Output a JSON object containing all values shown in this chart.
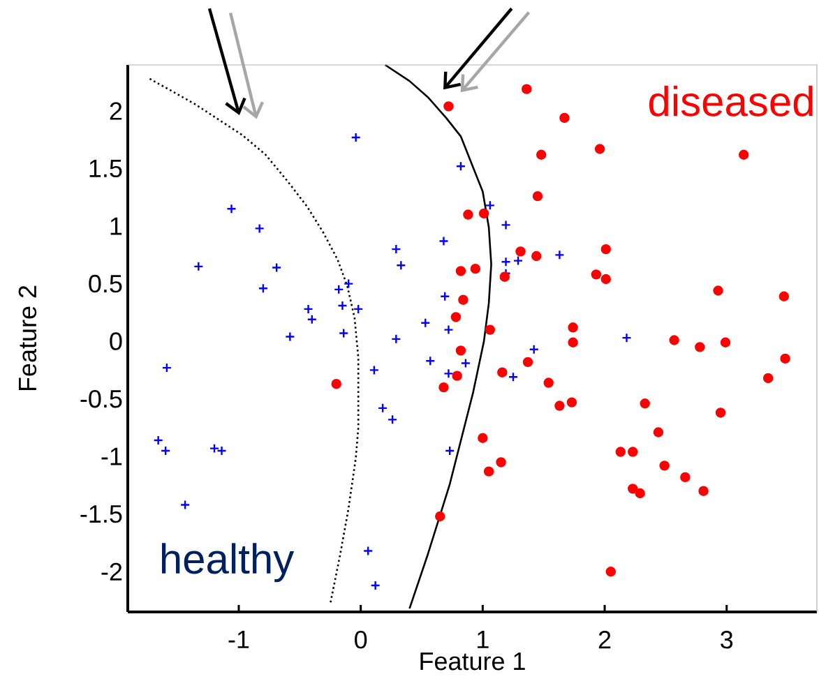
{
  "chart_data": {
    "type": "scatter",
    "xlabel": "Feature 1",
    "ylabel": "Feature 2",
    "annotations": [
      "healthy",
      "diseased"
    ],
    "xlim": [
      -1.91,
      3.74
    ],
    "ylim": [
      -2.35,
      2.4
    ],
    "xticks": [
      -1,
      0,
      1,
      2,
      3
    ],
    "yticks": [
      -2,
      -1.5,
      -1,
      -0.5,
      0,
      0.5,
      1,
      1.5,
      2
    ],
    "series": [
      {
        "color": "#0000ff",
        "marker": "cross",
        "x": [
          -0.04,
          0.82,
          -1.06,
          -0.83,
          -1.33,
          -0.69,
          -0.8,
          0.68,
          0.29,
          0.33,
          -0.1,
          -0.18,
          0.69,
          -0.43,
          -0.15,
          -0.02,
          -0.4,
          0.53,
          0.72,
          -0.58,
          -0.14,
          0.29,
          1.06,
          1.19,
          1.19,
          1.29,
          1.63,
          1.19,
          2.18,
          -1.59,
          0.11,
          0.57,
          0.86,
          0.72,
          0.18,
          0.26,
          -1.66,
          -1.6,
          -1.2,
          -1.14,
          0.73,
          -1.44,
          0.06,
          0.12,
          1.42,
          1.25
        ],
        "values": [
          1.77,
          1.52,
          1.15,
          0.98,
          0.65,
          0.64,
          0.46,
          0.87,
          0.8,
          0.66,
          0.5,
          0.45,
          0.39,
          0.28,
          0.31,
          0.28,
          0.19,
          0.16,
          0.1,
          0.04,
          0.07,
          0.02,
          1.18,
          1.01,
          0.69,
          0.7,
          0.75,
          0.59,
          0.03,
          -0.23,
          -0.25,
          -0.17,
          -0.19,
          -0.28,
          -0.58,
          -0.68,
          -0.86,
          -0.95,
          -0.93,
          -0.95,
          -0.95,
          -1.42,
          -1.82,
          -2.12,
          -0.07,
          -0.31
        ]
      },
      {
        "color": "#ff0000",
        "marker": "circle",
        "x": [
          0.72,
          0.88,
          0.82,
          0.84,
          0.78,
          1.36,
          1.67,
          1.48,
          1.96,
          3.14,
          1.45,
          1.01,
          1.31,
          1.44,
          2.01,
          0.94,
          1.18,
          1.93,
          2.01,
          2.93,
          3.47,
          1.06,
          1.74,
          1.74,
          2.57,
          2.78,
          2.99,
          3.48,
          0.82,
          0.79,
          0.68,
          1.37,
          1.16,
          1.54,
          1.63,
          1.73,
          2.33,
          3.34,
          2.95,
          2.44,
          1.0,
          2.13,
          2.23,
          2.49,
          1.05,
          1.15,
          2.66,
          2.23,
          2.29,
          2.81,
          0.65,
          2.05,
          -0.2
        ],
        "values": [
          2.04,
          1.1,
          0.61,
          0.36,
          0.21,
          2.19,
          1.94,
          1.62,
          1.67,
          1.62,
          1.26,
          1.11,
          0.78,
          0.74,
          0.8,
          0.63,
          0.56,
          0.58,
          0.54,
          0.44,
          0.39,
          0.1,
          0.12,
          -0.01,
          0.01,
          -0.05,
          -0.01,
          -0.15,
          -0.08,
          -0.3,
          -0.4,
          -0.18,
          -0.27,
          -0.36,
          -0.56,
          -0.53,
          -0.54,
          -0.32,
          -0.62,
          -0.79,
          -0.84,
          -0.96,
          -0.96,
          -1.08,
          -1.13,
          -1.05,
          -1.18,
          -1.28,
          -1.32,
          -1.3,
          -1.52,
          -2.0,
          -0.37
        ]
      },
      {
        "type": "line",
        "color": "#000000",
        "marker": "none",
        "line_style": "dotted",
        "x": [
          -1.73,
          -1.36,
          -0.97,
          -0.78,
          -0.6,
          -0.44,
          -0.31,
          -0.19,
          -0.11,
          -0.05,
          -0.02,
          -0.02,
          -0.04,
          -0.1,
          -0.17,
          -0.25
        ],
        "values": [
          2.28,
          2.06,
          1.79,
          1.62,
          1.39,
          1.17,
          0.95,
          0.71,
          0.48,
          0.2,
          -0.14,
          -0.75,
          -1.01,
          -1.45,
          -1.86,
          -2.28
        ]
      },
      {
        "type": "line",
        "color": "#000000",
        "marker": "none",
        "line_style": "solid",
        "x": [
          0.2,
          0.4,
          0.55,
          0.7,
          0.82,
          1.0,
          1.05,
          1.07,
          1.05,
          1.01,
          0.92,
          0.73,
          0.55,
          0.4
        ],
        "values": [
          2.4,
          2.26,
          2.12,
          1.94,
          1.78,
          1.3,
          0.99,
          0.67,
          0.33,
          0.0,
          -0.45,
          -1.24,
          -1.85,
          -2.32
        ]
      }
    ]
  }
}
